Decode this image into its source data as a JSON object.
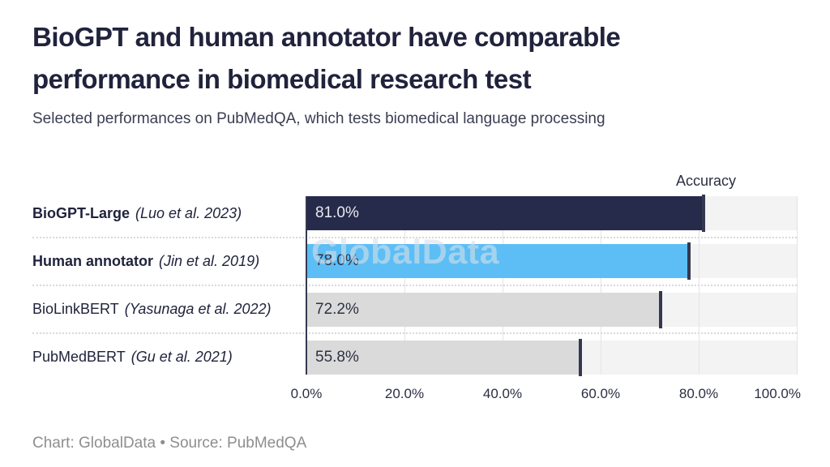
{
  "title": "BioGPT and human annotator have comparable performance in biomedical research test",
  "subtitle": "Selected performances on PubMedQA, which tests biomedical language processing",
  "watermark": "GlobalData",
  "footer": "Chart: GlobalData • Source: PubMedQA",
  "chart_data": {
    "type": "bar",
    "orientation": "horizontal",
    "title": "BioGPT and human annotator have comparable performance in biomedical research test",
    "subtitle": "Selected performances on PubMedQA, which tests biomedical language processing",
    "value_axis_label": "Accuracy",
    "categories": [
      "BioGPT-Large",
      "Human annotator",
      "BioLinkBERT",
      "PubMedBERT"
    ],
    "citations": [
      "(Luo et al. 2023)",
      "(Jin et al. 2019)",
      "(Yasunaga et al. 2022)",
      "(Gu et al. 2021)"
    ],
    "values": [
      81.0,
      78.0,
      72.2,
      55.8
    ],
    "value_labels": [
      "81.0%",
      "78.0%",
      "72.2%",
      "55.8%"
    ],
    "emphasized": [
      true,
      true,
      false,
      false
    ],
    "xlim": [
      0,
      100
    ],
    "x_ticks": [
      "0.0%",
      "20.0%",
      "40.0%",
      "60.0%",
      "80.0%",
      "100.0%"
    ],
    "grid": true,
    "legend": "none",
    "source": "PubMedQA"
  },
  "colors": {
    "bar_colors": [
      "#262a4b",
      "#5cbef5",
      "#dadada",
      "#dadada"
    ],
    "value_label_colors": [
      "#e9eaf0",
      "#2f3246",
      "#2f3246",
      "#2f3246"
    ],
    "track": "#f3f3f3",
    "marker": "#343850",
    "gridline": "#e4e4e4",
    "title_color": "#20233c",
    "footer_color": "#8e8e8e",
    "watermark_color": "#d6dfe8"
  }
}
